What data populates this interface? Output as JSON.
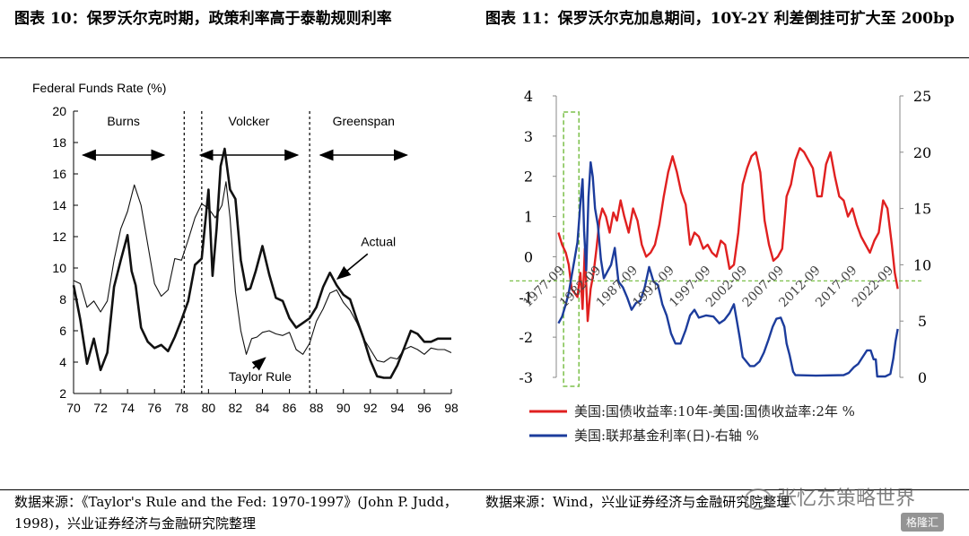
{
  "titles": {
    "left": "图表 10：保罗沃尔克时期，政策利率高于泰勒规则利率",
    "right": "图表 11：保罗沃尔克加息期间，10Y-2Y 利差倒挂可扩大至 200bp"
  },
  "sources": {
    "left": "数据来源：《Taylor's Rule and the Fed: 1970-1997》(John P. Judd，1998)，兴业证券经济与金融研究院整理",
    "right": "数据来源：Wind，兴业证券经济与金融研究院整理"
  },
  "watermark": {
    "text": "张忆东策略世界",
    "badge": "格隆汇"
  },
  "chart_data": [
    {
      "type": "line",
      "title": "",
      "ylabel": "Federal Funds Rate (%)",
      "xlabel": "",
      "ylim": [
        2,
        20
      ],
      "xlim": [
        70,
        98
      ],
      "x_ticks": [
        "70",
        "72",
        "74",
        "76",
        "78",
        "80",
        "82",
        "84",
        "86",
        "88",
        "90",
        "92",
        "94",
        "96",
        "98"
      ],
      "y_ticks": [
        "2",
        "4",
        "6",
        "8",
        "10",
        "12",
        "14",
        "16",
        "18",
        "20"
      ],
      "eras": [
        {
          "name": "Burns",
          "from": 70.7,
          "to": 76.7
        },
        {
          "name": "Volcker",
          "from": 79.4,
          "to": 86.6
        },
        {
          "name": "Greenspan",
          "from": 88.3,
          "to": 94.7
        }
      ],
      "era_dividers": [
        78.2,
        79.5,
        87.5
      ],
      "annotations": [
        {
          "text": "Actual",
          "at": [
            89.3,
            9.2
          ]
        },
        {
          "text": "Taylor Rule",
          "at": [
            84.2,
            4.5
          ]
        }
      ],
      "series": [
        {
          "name": "Actual",
          "style": "thick",
          "x": [
            70,
            70.5,
            71,
            71.5,
            72,
            72.5,
            73,
            73.5,
            74,
            74.3,
            74.6,
            75,
            75.5,
            76,
            76.5,
            77,
            77.5,
            78,
            78.5,
            79,
            79.5,
            80,
            80.3,
            80.6,
            80.9,
            81.2,
            81.6,
            82,
            82.4,
            82.8,
            83.1,
            83.5,
            84,
            84.5,
            85,
            85.5,
            86,
            86.5,
            87,
            87.5,
            88,
            88.5,
            89,
            89.5,
            90,
            90.5,
            91,
            91.5,
            92,
            92.5,
            93,
            93.5,
            94,
            94.5,
            95,
            95.5,
            96,
            96.5,
            97,
            97.5,
            98
          ],
          "values": [
            8.9,
            6.7,
            3.9,
            5.5,
            3.5,
            4.6,
            8.8,
            10.5,
            12.1,
            9.8,
            8.9,
            6.2,
            5.3,
            4.9,
            5.1,
            4.7,
            5.6,
            6.7,
            7.9,
            10.2,
            10.6,
            15.0,
            9.5,
            12.5,
            16.5,
            17.6,
            15.0,
            14.4,
            10.5,
            8.6,
            8.7,
            9.8,
            11.4,
            9.6,
            8.1,
            7.9,
            6.8,
            6.2,
            6.5,
            6.8,
            7.5,
            8.8,
            9.7,
            8.9,
            8.3,
            8.0,
            6.7,
            5.5,
            4.1,
            3.1,
            3.0,
            3.0,
            3.8,
            4.9,
            6.0,
            5.8,
            5.3,
            5.3,
            5.5,
            5.5,
            5.5
          ]
        },
        {
          "name": "Taylor Rule",
          "style": "thin",
          "x": [
            70,
            70.5,
            71,
            71.5,
            72,
            72.5,
            73,
            73.5,
            74,
            74.5,
            75,
            75.5,
            76,
            76.5,
            77,
            77.5,
            78,
            78.5,
            79,
            79.5,
            80,
            80.5,
            81,
            81.3,
            81.6,
            82,
            82.4,
            82.8,
            83.2,
            83.6,
            84,
            84.5,
            85,
            85.5,
            86,
            86.5,
            87,
            87.5,
            88,
            88.5,
            89,
            89.5,
            90,
            90.5,
            91,
            91.5,
            92,
            92.5,
            93,
            93.5,
            94,
            94.5,
            95,
            95.5,
            96,
            96.5,
            97,
            97.5,
            98
          ],
          "values": [
            9.2,
            9.0,
            7.5,
            7.9,
            7.2,
            7.9,
            10.5,
            12.5,
            13.6,
            15.3,
            14.0,
            11.5,
            9.0,
            8.2,
            8.6,
            10.6,
            10.5,
            11.8,
            13.2,
            14.1,
            13.8,
            13.2,
            14.0,
            15.5,
            13.2,
            8.5,
            6.0,
            4.5,
            5.5,
            5.6,
            5.9,
            6.0,
            5.8,
            5.7,
            5.9,
            4.8,
            4.5,
            5.2,
            6.6,
            7.4,
            8.4,
            8.6,
            7.8,
            7.3,
            6.5,
            5.5,
            4.8,
            4.1,
            4.0,
            4.3,
            4.2,
            4.8,
            5.0,
            4.8,
            4.5,
            4.9,
            4.8,
            4.8,
            4.6
          ]
        }
      ]
    },
    {
      "type": "line",
      "title": "",
      "y_left_ticks": [
        "-3",
        "-2",
        "-1",
        "0",
        "1",
        "2",
        "3",
        "4"
      ],
      "y_right_ticks": [
        "0",
        "5",
        "10",
        "15",
        "20",
        "25"
      ],
      "ylim_left": [
        -3,
        4
      ],
      "ylim_right": [
        0,
        25
      ],
      "xlim": [
        1976.5,
        2023.5
      ],
      "x_ticks": [
        "1977-09",
        "1982-09",
        "1987-09",
        "1992-09",
        "1997-09",
        "2002-09",
        "2007-09",
        "2012-09",
        "2017-09",
        "2022-09"
      ],
      "highlight_box": {
        "from": 1977.5,
        "to": 1979.6,
        "ymin": -3,
        "ymax": 3.6
      },
      "reference_line_left": -0.6,
      "series": [
        {
          "name": "美国:国债收益率:10年-美国:国债收益率:2年 %",
          "color": "#e02020",
          "axis": "left",
          "x": [
            1976.8,
            1977.3,
            1977.8,
            1978.2,
            1978.6,
            1979.0,
            1979.4,
            1979.8,
            1980.1,
            1980.4,
            1980.8,
            1981.2,
            1981.6,
            1982.0,
            1982.4,
            1982.8,
            1983.3,
            1983.8,
            1984.3,
            1984.8,
            1985.3,
            1985.8,
            1986.4,
            1987.0,
            1987.6,
            1988.2,
            1988.8,
            1989.4,
            1990.0,
            1990.6,
            1991.2,
            1991.8,
            1992.4,
            1993.0,
            1993.6,
            1994.2,
            1994.8,
            1995.4,
            1996.0,
            1996.6,
            1997.2,
            1997.8,
            1998.4,
            1999.0,
            1999.6,
            2000.2,
            2000.8,
            2001.4,
            2002.0,
            2002.6,
            2003.2,
            2003.8,
            2004.4,
            2005.0,
            2005.6,
            2006.2,
            2006.8,
            2007.4,
            2008.0,
            2008.6,
            2009.2,
            2009.8,
            2010.4,
            2011.0,
            2011.6,
            2012.2,
            2012.8,
            2013.4,
            2014.0,
            2014.6,
            2015.2,
            2015.8,
            2016.4,
            2017.0,
            2017.6,
            2018.2,
            2018.8,
            2019.4,
            2020.0,
            2020.6,
            2021.2,
            2021.8,
            2022.4,
            2022.8,
            2023.2
          ],
          "values": [
            0.6,
            0.3,
            0.1,
            -0.2,
            -0.8,
            -0.9,
            -1.0,
            -0.4,
            -1.3,
            0.2,
            -1.6,
            -0.8,
            -0.4,
            0.2,
            0.9,
            1.2,
            1.0,
            0.6,
            1.1,
            0.9,
            1.4,
            1.0,
            0.6,
            1.2,
            0.9,
            0.3,
            0.0,
            0.1,
            0.3,
            0.8,
            1.5,
            2.1,
            2.5,
            2.1,
            1.6,
            1.3,
            0.3,
            0.6,
            0.5,
            0.2,
            0.3,
            0.1,
            0.0,
            0.4,
            0.3,
            -0.3,
            -0.2,
            0.6,
            1.8,
            2.2,
            2.5,
            2.6,
            2.1,
            0.9,
            0.3,
            -0.1,
            0.0,
            0.2,
            1.5,
            1.8,
            2.4,
            2.7,
            2.6,
            2.4,
            2.2,
            1.5,
            1.5,
            2.3,
            2.6,
            2.0,
            1.5,
            1.4,
            1.0,
            1.2,
            0.8,
            0.5,
            0.3,
            0.1,
            0.4,
            0.6,
            1.4,
            1.2,
            0.3,
            -0.4,
            -0.8
          ]
        },
        {
          "name": "美国:联邦基金利率(日)-右轴 %",
          "color": "#1c3c9c",
          "axis": "right",
          "x": [
            1976.8,
            1977.3,
            1977.8,
            1978.2,
            1978.6,
            1979.0,
            1979.4,
            1979.8,
            1980.1,
            1980.3,
            1980.6,
            1980.9,
            1981.2,
            1981.5,
            1981.8,
            1982.2,
            1982.6,
            1983.0,
            1983.5,
            1984.0,
            1984.5,
            1985.0,
            1985.6,
            1986.2,
            1986.8,
            1987.4,
            1988.0,
            1988.6,
            1989.2,
            1989.8,
            1990.4,
            1991.0,
            1991.6,
            1992.2,
            1992.8,
            1993.5,
            1994.2,
            1994.8,
            1995.4,
            1996.0,
            1997.0,
            1998.0,
            1998.8,
            1999.5,
            2000.2,
            2000.8,
            2001.2,
            2001.6,
            2002.0,
            2003.0,
            2003.6,
            2004.3,
            2004.9,
            2005.5,
            2006.1,
            2006.6,
            2007.2,
            2007.7,
            2008.0,
            2008.4,
            2008.9,
            2009.2,
            2012.0,
            2015.8,
            2016.5,
            2017.2,
            2017.8,
            2018.4,
            2019.0,
            2019.5,
            2019.9,
            2020.2,
            2020.4,
            2021.5,
            2022.2,
            2022.6,
            2022.9,
            2023.2
          ],
          "values": [
            4.8,
            5.4,
            6.5,
            7.5,
            9.0,
            10.5,
            12.0,
            15.5,
            17.6,
            13.0,
            9.5,
            16.0,
            19.1,
            17.8,
            15.0,
            13.5,
            10.5,
            8.8,
            9.4,
            10.0,
            11.5,
            8.5,
            8.0,
            7.1,
            6.0,
            6.6,
            6.8,
            8.0,
            9.8,
            8.5,
            8.2,
            6.5,
            5.5,
            3.9,
            3.0,
            3.0,
            4.2,
            5.5,
            6.0,
            5.3,
            5.5,
            5.4,
            4.8,
            5.1,
            5.7,
            6.5,
            5.0,
            3.5,
            1.8,
            1.0,
            1.0,
            1.4,
            2.2,
            3.3,
            4.5,
            5.2,
            5.3,
            4.5,
            3.0,
            2.0,
            0.5,
            0.2,
            0.15,
            0.2,
            0.4,
            0.9,
            1.2,
            1.8,
            2.4,
            2.4,
            1.6,
            1.6,
            0.08,
            0.08,
            0.3,
            1.7,
            3.2,
            4.3
          ]
        }
      ]
    }
  ]
}
